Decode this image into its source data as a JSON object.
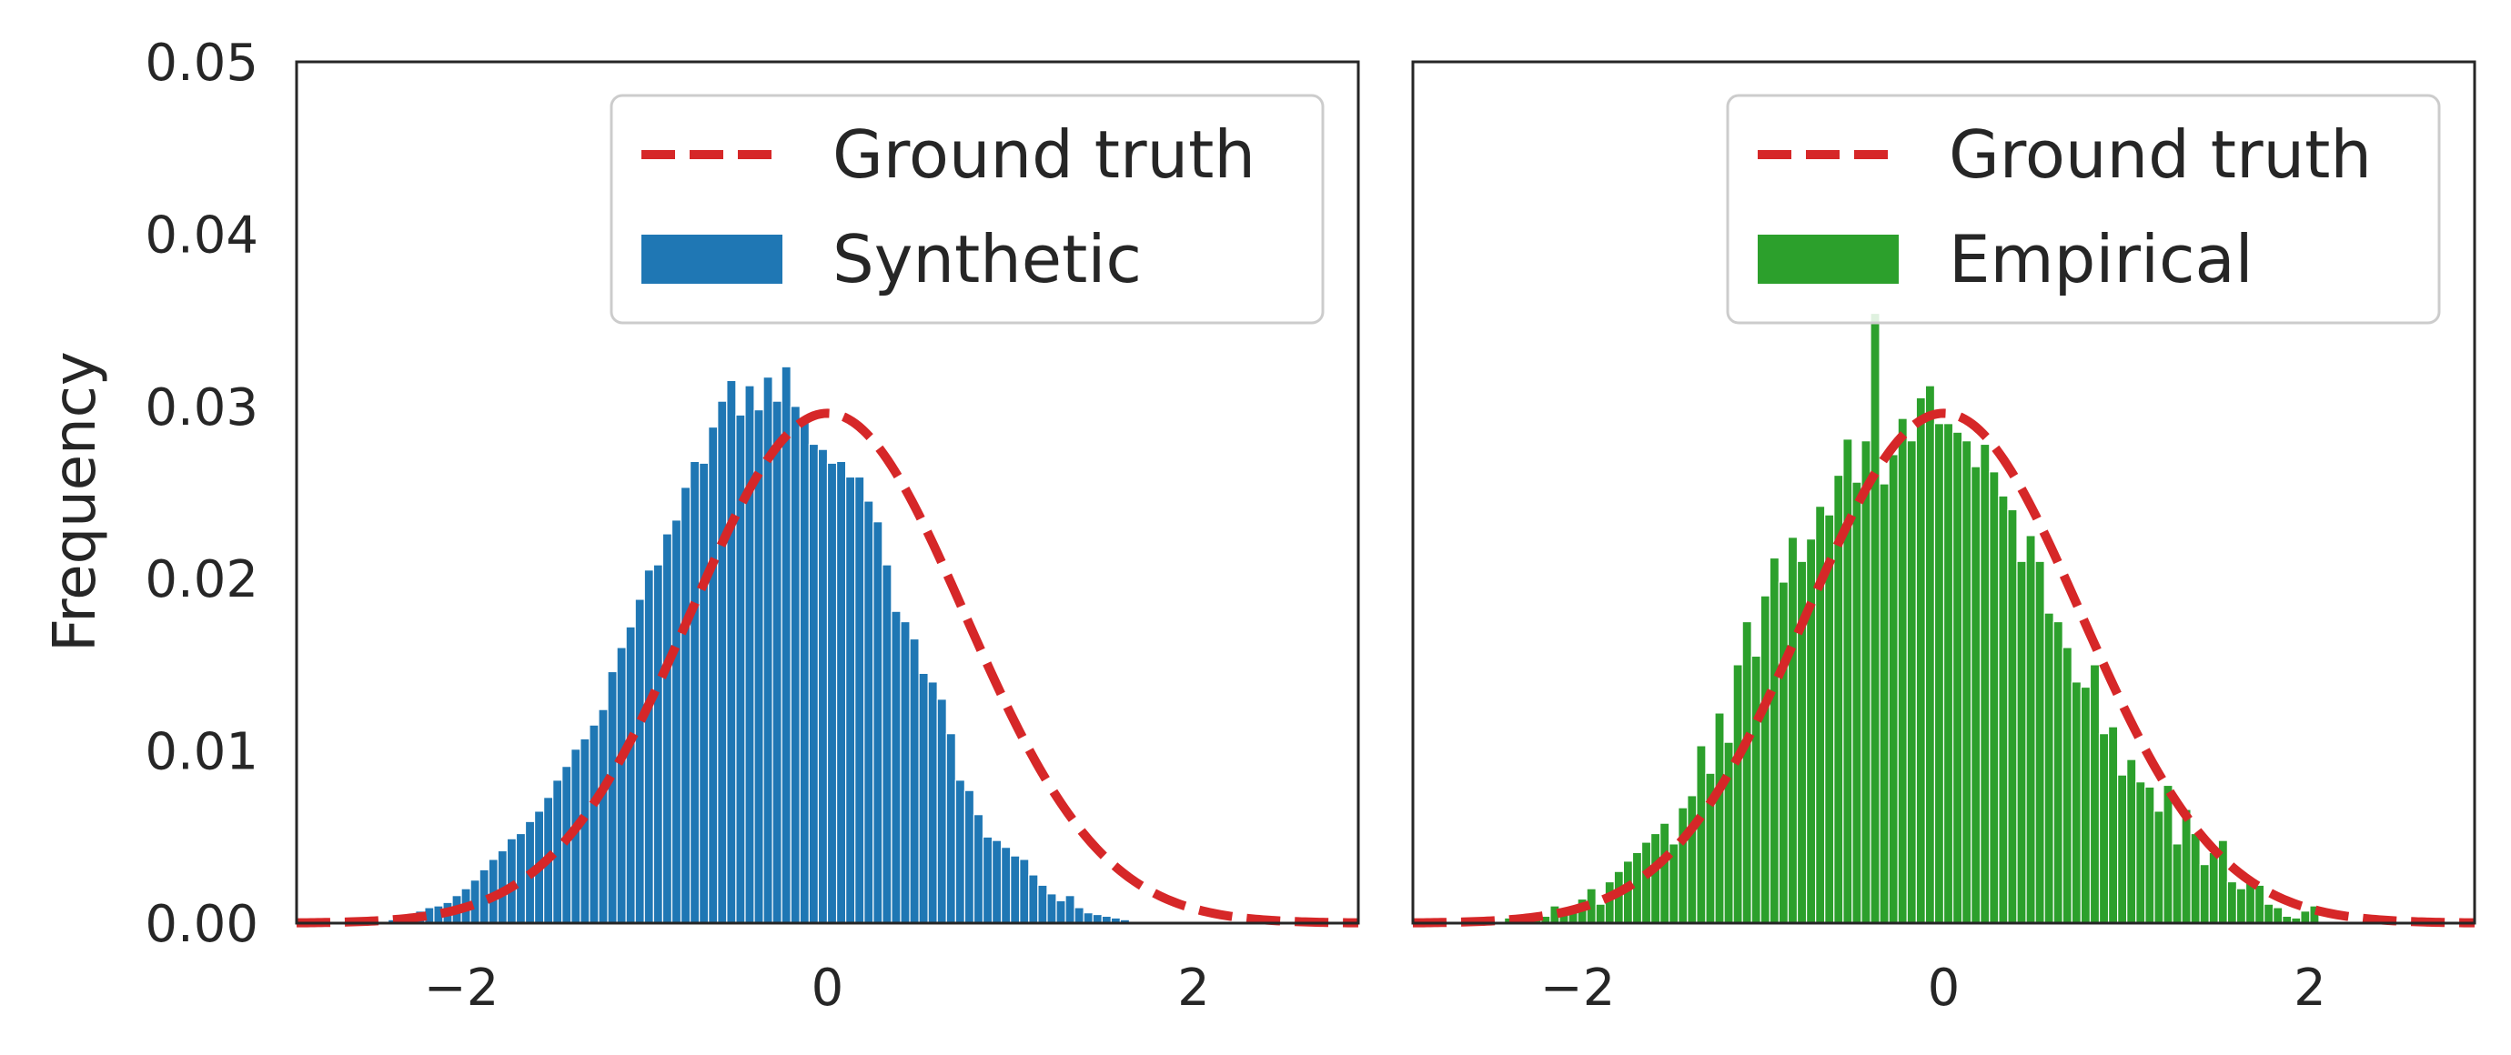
{
  "chart_data": [
    {
      "type": "bar",
      "panel": "left",
      "ylabel": "Frequency",
      "xlim": [
        -2.9,
        2.9
      ],
      "ylim": [
        0,
        0.05
      ],
      "xticks": [
        {
          "value": -2,
          "label": "−2"
        },
        {
          "value": 0,
          "label": "0"
        },
        {
          "value": 2,
          "label": "2"
        }
      ],
      "yticks": [
        {
          "value": 0,
          "label": "0.00"
        },
        {
          "value": 0.01,
          "label": "0.01"
        },
        {
          "value": 0.02,
          "label": "0.02"
        },
        {
          "value": 0.03,
          "label": "0.03"
        },
        {
          "value": 0.04,
          "label": "0.04"
        },
        {
          "value": 0.05,
          "label": "0.05"
        }
      ],
      "grid": false,
      "legend_position": "top-right",
      "legend": [
        {
          "label": "Ground truth",
          "kind": "dashed-line",
          "color": "#d62728"
        },
        {
          "label": "Synthetic",
          "kind": "patch",
          "color": "#1f77b4"
        }
      ],
      "histogram": {
        "name": "Synthetic",
        "color": "#1f77b4",
        "bin_start": -2.4,
        "bin_width": 0.05,
        "values": [
          0.0002,
          0.0003,
          0.0005,
          0.0007,
          0.0009,
          0.001,
          0.0012,
          0.0016,
          0.002,
          0.0025,
          0.0031,
          0.0037,
          0.0042,
          0.0049,
          0.0052,
          0.0059,
          0.0065,
          0.0073,
          0.0083,
          0.0091,
          0.0101,
          0.0107,
          0.0115,
          0.0124,
          0.0146,
          0.016,
          0.0172,
          0.0188,
          0.0205,
          0.0208,
          0.0226,
          0.0234,
          0.0253,
          0.0268,
          0.0267,
          0.0288,
          0.0303,
          0.0315,
          0.0295,
          0.0312,
          0.0298,
          0.0317,
          0.0303,
          0.0323,
          0.03,
          0.0292,
          0.0278,
          0.0275,
          0.0267,
          0.0268,
          0.0259,
          0.0259,
          0.0245,
          0.0233,
          0.0208,
          0.0181,
          0.0175,
          0.0165,
          0.0145,
          0.014,
          0.013,
          0.011,
          0.0083,
          0.0077,
          0.0063,
          0.005,
          0.0048,
          0.0044,
          0.0039,
          0.0037,
          0.0028,
          0.0022,
          0.0017,
          0.0013,
          0.0016,
          0.0009,
          0.0006,
          0.0005,
          0.0004,
          0.0003,
          0.0002,
          0.0001,
          0.0001,
          0.0001
        ]
      },
      "ground_truth": {
        "name": "Ground truth",
        "color": "#d62728",
        "amplitude": 0.0296,
        "mean": 0,
        "sigma": 0.75
      }
    },
    {
      "type": "bar",
      "panel": "right",
      "xlim": [
        -2.9,
        2.9
      ],
      "ylim": [
        0,
        0.05
      ],
      "xticks": [
        {
          "value": -2,
          "label": "−2"
        },
        {
          "value": 0,
          "label": "0"
        },
        {
          "value": 2,
          "label": "2"
        }
      ],
      "grid": false,
      "legend_position": "top-right",
      "legend": [
        {
          "label": "Ground truth",
          "kind": "dashed-line",
          "color": "#d62728"
        },
        {
          "label": "Empirical",
          "kind": "patch",
          "color": "#2ca02c"
        }
      ],
      "histogram": {
        "name": "Empirical",
        "color": "#2ca02c",
        "bin_start": -2.4,
        "bin_width": 0.05,
        "values": [
          0.0003,
          0.0002,
          0.0004,
          0.0006,
          0.0004,
          0.001,
          0.0009,
          0.0008,
          0.0014,
          0.002,
          0.0011,
          0.0024,
          0.003,
          0.0036,
          0.0041,
          0.0047,
          0.0052,
          0.0058,
          0.0046,
          0.0067,
          0.0074,
          0.0103,
          0.0087,
          0.0122,
          0.0105,
          0.015,
          0.0175,
          0.0155,
          0.019,
          0.0212,
          0.0198,
          0.0224,
          0.021,
          0.0223,
          0.0242,
          0.0237,
          0.026,
          0.0281,
          0.0256,
          0.028,
          0.0354,
          0.0255,
          0.0272,
          0.0293,
          0.028,
          0.0305,
          0.0312,
          0.029,
          0.029,
          0.0285,
          0.028,
          0.0265,
          0.0278,
          0.0262,
          0.0248,
          0.024,
          0.021,
          0.0225,
          0.021,
          0.018,
          0.0175,
          0.016,
          0.014,
          0.0137,
          0.015,
          0.011,
          0.0114,
          0.0086,
          0.0095,
          0.0082,
          0.0079,
          0.0065,
          0.008,
          0.0046,
          0.0066,
          0.0052,
          0.0034,
          0.0041,
          0.0048,
          0.0024,
          0.002,
          0.0024,
          0.0022,
          0.0011,
          0.0009,
          0.0004,
          0.0003,
          0.0007,
          0.001
        ]
      },
      "ground_truth": {
        "name": "Ground truth",
        "color": "#d62728",
        "amplitude": 0.0296,
        "mean": 0,
        "sigma": 0.75
      }
    }
  ]
}
